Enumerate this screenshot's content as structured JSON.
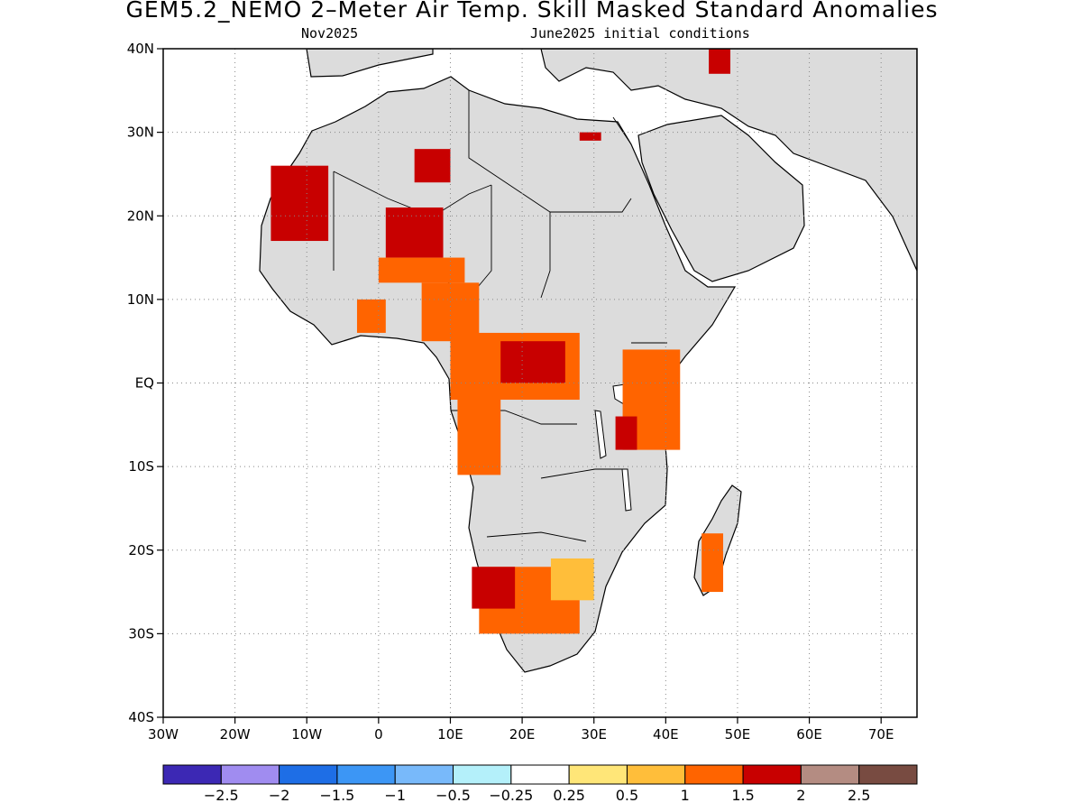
{
  "title": "GEM5.2_NEMO 2–Meter Air Temp. Skill Masked Standard Anomalies",
  "subtitle_left": "Nov2025",
  "subtitle_right": "June2025 initial conditions",
  "map": {
    "lon_range": [
      -30,
      75
    ],
    "lat_range": [
      -40,
      40
    ],
    "grid": true,
    "lat_ticks": [
      {
        "value": 40,
        "label": "40N"
      },
      {
        "value": 30,
        "label": "30N"
      },
      {
        "value": 20,
        "label": "20N"
      },
      {
        "value": 10,
        "label": "10N"
      },
      {
        "value": 0,
        "label": "EQ"
      },
      {
        "value": -10,
        "label": "10S"
      },
      {
        "value": -20,
        "label": "20S"
      },
      {
        "value": -30,
        "label": "30S"
      },
      {
        "value": -40,
        "label": "40S"
      }
    ],
    "lon_ticks": [
      {
        "value": -30,
        "label": "30W"
      },
      {
        "value": -20,
        "label": "20W"
      },
      {
        "value": -10,
        "label": "10W"
      },
      {
        "value": 0,
        "label": "0"
      },
      {
        "value": 10,
        "label": "10E"
      },
      {
        "value": 20,
        "label": "20E"
      },
      {
        "value": 30,
        "label": "30E"
      },
      {
        "value": 40,
        "label": "40E"
      },
      {
        "value": 50,
        "label": "50E"
      },
      {
        "value": 60,
        "label": "60E"
      },
      {
        "value": 70,
        "label": "70E"
      }
    ],
    "colors": {
      "land_masked": "#dcdcdc",
      "anom_0_5_1": "#ffbe3a",
      "anom_1_1_5": "#ff6400",
      "anom_1_5_2": "#c80000",
      "anom_2_2_5": "#b48c82",
      "anom_neg_0_5": "#b4f0fa"
    },
    "anomaly_regions": [
      {
        "name": "mauritania-mali",
        "level": 3,
        "lat": [
          17,
          26
        ],
        "lon": [
          -15,
          -7
        ]
      },
      {
        "name": "algeria-libya",
        "level": 3,
        "lat": [
          24,
          28
        ],
        "lon": [
          5,
          10
        ]
      },
      {
        "name": "niger-chad",
        "level": 3,
        "lat": [
          15,
          21
        ],
        "lon": [
          1,
          9
        ]
      },
      {
        "name": "sahel-belt",
        "level": 2,
        "lat": [
          12,
          15
        ],
        "lon": [
          0,
          12
        ]
      },
      {
        "name": "cameroon-nigeria",
        "level": 2,
        "lat": [
          5,
          12
        ],
        "lon": [
          6,
          14
        ]
      },
      {
        "name": "ghana-togo",
        "level": 2,
        "lat": [
          6,
          10
        ],
        "lon": [
          -3,
          1
        ]
      },
      {
        "name": "central-africa",
        "level": 2,
        "lat": [
          -2,
          6
        ],
        "lon": [
          10,
          28
        ]
      },
      {
        "name": "drc-congo",
        "level": 3,
        "lat": [
          0,
          5
        ],
        "lon": [
          17,
          26
        ]
      },
      {
        "name": "gabon-angola",
        "level": 2,
        "lat": [
          -11,
          0
        ],
        "lon": [
          11,
          17
        ]
      },
      {
        "name": "east-africa",
        "level": 2,
        "lat": [
          -8,
          4
        ],
        "lon": [
          34,
          42
        ]
      },
      {
        "name": "tanzania",
        "level": 3,
        "lat": [
          -8,
          -4
        ],
        "lon": [
          33,
          36
        ]
      },
      {
        "name": "namibia-botswana",
        "level": 2,
        "lat": [
          -30,
          -22
        ],
        "lon": [
          14,
          28
        ]
      },
      {
        "name": "botswana-zimbabwe",
        "level": 1,
        "lat": [
          -26,
          -21
        ],
        "lon": [
          24,
          30
        ]
      },
      {
        "name": "namibia-coast",
        "level": 3,
        "lat": [
          -27,
          -22
        ],
        "lon": [
          13,
          19
        ]
      },
      {
        "name": "madagascar",
        "level": 2,
        "lat": [
          -25,
          -18
        ],
        "lon": [
          45,
          48
        ]
      },
      {
        "name": "iraq",
        "level": 3,
        "lat": [
          37,
          40
        ],
        "lon": [
          46,
          49
        ]
      },
      {
        "name": "egypt",
        "level": 3,
        "lat": [
          29,
          30
        ],
        "lon": [
          28,
          31
        ]
      }
    ]
  },
  "colorbar": {
    "colors": [
      "#3c28b4",
      "#a08cf0",
      "#1e6ee6",
      "#3c96f5",
      "#78b9fa",
      "#b4f0fa",
      "#ffffff",
      "#ffe678",
      "#ffbe3a",
      "#ff6400",
      "#c80000",
      "#b48c82",
      "#784b41"
    ],
    "labels": [
      "−2.5",
      "−2",
      "−1.5",
      "−1",
      "−0.5",
      "−0.25",
      "0.25",
      "0.5",
      "1",
      "1.5",
      "2",
      "2.5"
    ]
  }
}
